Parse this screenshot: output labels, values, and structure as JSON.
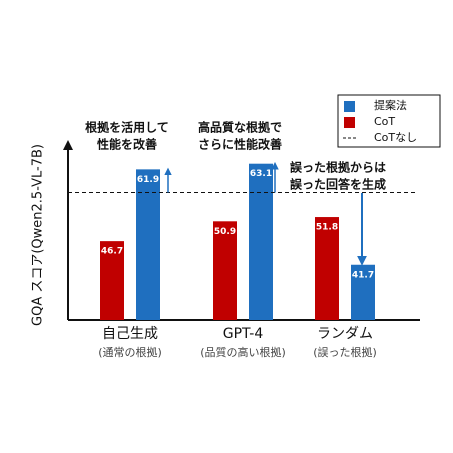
{
  "chart_data": {
    "type": "bar",
    "y_label": "GQA スコア(Qwen2.5-VL-7B)",
    "categories": [
      "自己生成",
      "GPT-4",
      "ランダム"
    ],
    "subcategories": [
      "(通常の根拠)",
      "(品質の高い根拠)",
      "(誤った根拠)"
    ],
    "series": [
      {
        "name": "CoT",
        "color": "#c00000",
        "values": [
          46.7,
          50.9,
          51.8
        ]
      },
      {
        "name": "提案法",
        "color": "#1f6fbf",
        "values": [
          61.9,
          63.1,
          41.7
        ]
      }
    ],
    "reference_line": {
      "name": "CoTなし",
      "value": 57
    },
    "ylim": [
      30,
      66
    ],
    "annotations": [
      [
        "根拠を活用して",
        "性能を改善"
      ],
      [
        "高品質な根拠で",
        "さらに性能改善"
      ],
      [
        "誤った根拠からは",
        "誤った回答を生成"
      ]
    ],
    "legend": "upper-right"
  }
}
